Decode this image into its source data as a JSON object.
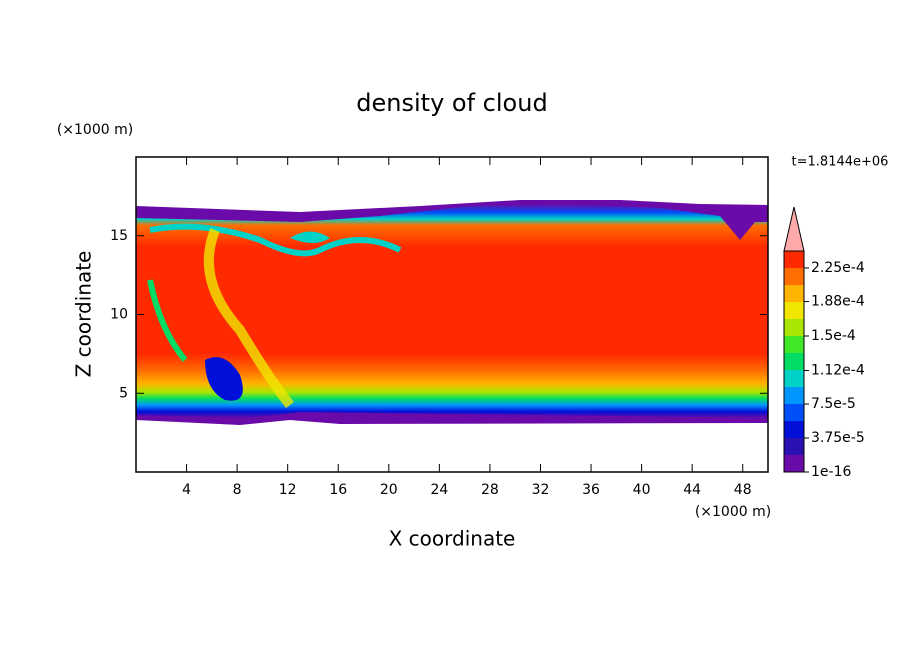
{
  "chart_data": {
    "type": "contour",
    "title": "density of cloud",
    "xlabel": "X coordinate",
    "ylabel": "Z coordinate",
    "xunit": "(×1000 m)",
    "yunit": "(×1000 m)",
    "annotation": "t=1.8144e+06",
    "xlim": [
      0,
      50
    ],
    "xticks": [
      4,
      8,
      12,
      16,
      20,
      24,
      28,
      32,
      36,
      40,
      44,
      48
    ],
    "ylim": [
      0,
      20
    ],
    "yticks": [
      5,
      10,
      15
    ],
    "colorbar": {
      "lim": [
        1e-16,
        0.00024375
      ],
      "colors": [
        "#6a0aa8",
        "#2a10b0",
        "#0010d8",
        "#0050f8",
        "#0096ff",
        "#00d2c8",
        "#00dc64",
        "#40e628",
        "#a8e600",
        "#f0e600",
        "#ffb400",
        "#ff6e00",
        "#ff2a00"
      ],
      "over_color": "#ffaaaa",
      "ticks": [
        1e-16,
        {
          "value": 3.75e-05,
          "label": "3.75e-5"
        },
        {
          "value": 7.5e-05,
          "label": "7.5e-5"
        },
        {
          "value": 0.000112,
          "label": "1.12e-4"
        },
        {
          "value": 0.00015,
          "label": "1.5e-4"
        },
        {
          "value": 0.000188,
          "label": "1.88e-4"
        },
        {
          "value": 0.000225,
          "label": "2.25e-4"
        }
      ]
    }
  }
}
